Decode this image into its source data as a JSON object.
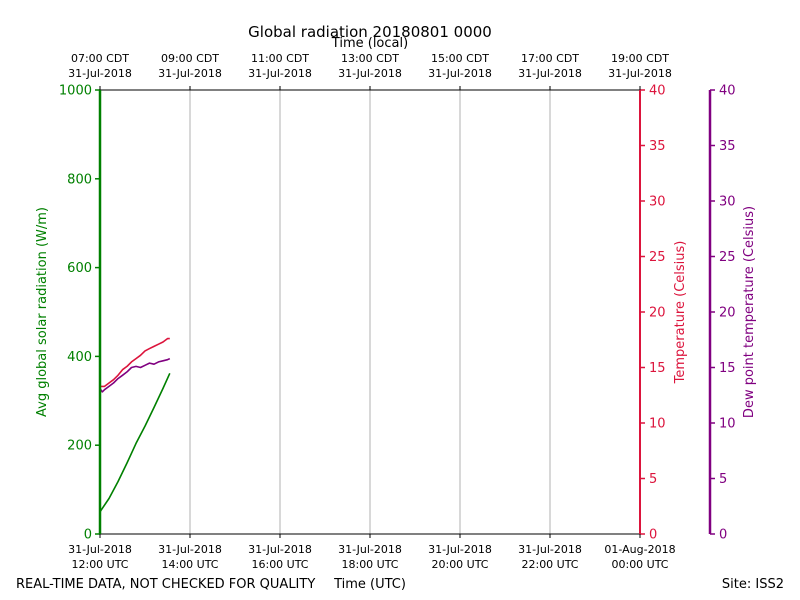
{
  "chart_data": {
    "type": "line",
    "title": "Global radiation 20180801 0000",
    "top_axis_label": "Time (local)",
    "xlabel": "Time (UTC)",
    "footer_left": "REAL-TIME DATA, NOT CHECKED FOR QUALITY",
    "footer_right": "Site: ISS2",
    "x_range_hours_utc": [
      12,
      24
    ],
    "x_ticks_bottom": [
      {
        "hour": 12,
        "line1": "31-Jul-2018",
        "line2": "12:00 UTC"
      },
      {
        "hour": 14,
        "line1": "31-Jul-2018",
        "line2": "14:00 UTC"
      },
      {
        "hour": 16,
        "line1": "31-Jul-2018",
        "line2": "16:00 UTC"
      },
      {
        "hour": 18,
        "line1": "31-Jul-2018",
        "line2": "18:00 UTC"
      },
      {
        "hour": 20,
        "line1": "31-Jul-2018",
        "line2": "20:00 UTC"
      },
      {
        "hour": 22,
        "line1": "31-Jul-2018",
        "line2": "22:00 UTC"
      },
      {
        "hour": 24,
        "line1": "01-Aug-2018",
        "line2": "00:00 UTC"
      }
    ],
    "x_ticks_top": [
      {
        "hour": 12,
        "line1": "07:00 CDT",
        "line2": "31-Jul-2018"
      },
      {
        "hour": 14,
        "line1": "09:00 CDT",
        "line2": "31-Jul-2018"
      },
      {
        "hour": 16,
        "line1": "11:00 CDT",
        "line2": "31-Jul-2018"
      },
      {
        "hour": 18,
        "line1": "13:00 CDT",
        "line2": "31-Jul-2018"
      },
      {
        "hour": 20,
        "line1": "15:00 CDT",
        "line2": "31-Jul-2018"
      },
      {
        "hour": 22,
        "line1": "17:00 CDT",
        "line2": "31-Jul-2018"
      },
      {
        "hour": 24,
        "line1": "19:00 CDT",
        "line2": "31-Jul-2018"
      }
    ],
    "axes": {
      "radiation": {
        "label": "Avg global solar radiation (W/m)",
        "ylim": [
          0,
          1000
        ],
        "ticks": [
          0,
          200,
          400,
          600,
          800,
          1000
        ],
        "color": "#008000"
      },
      "temperature": {
        "label": "Temperature (Celsius)",
        "ylim": [
          0,
          40
        ],
        "ticks": [
          0,
          5,
          10,
          15,
          20,
          25,
          30,
          35,
          40
        ],
        "color": "#dc143c"
      },
      "dewpoint": {
        "label": "Dew point temperature (Celsius)",
        "ylim": [
          0,
          40
        ],
        "ticks": [
          0,
          5,
          10,
          15,
          20,
          25,
          30,
          35,
          40
        ],
        "color": "#800080"
      }
    },
    "series": [
      {
        "name": "radiation",
        "axis": "radiation",
        "color": "#008000",
        "x": [
          12.0,
          12.2,
          12.4,
          12.6,
          12.8,
          13.0,
          13.2,
          13.4,
          13.55
        ],
        "y": [
          50,
          80,
          118,
          160,
          204,
          243,
          285,
          328,
          362
        ]
      },
      {
        "name": "temperature",
        "axis": "temperature",
        "color": "#dc143c",
        "x": [
          12.0,
          12.1,
          12.2,
          12.3,
          12.4,
          12.5,
          12.6,
          12.7,
          12.8,
          12.9,
          13.0,
          13.1,
          13.2,
          13.3,
          13.4,
          13.5,
          13.55
        ],
        "y": [
          13.3,
          13.3,
          13.6,
          13.9,
          14.3,
          14.8,
          15.1,
          15.5,
          15.8,
          16.1,
          16.5,
          16.7,
          16.9,
          17.1,
          17.3,
          17.6,
          17.6
        ]
      },
      {
        "name": "dewpoint",
        "axis": "dewpoint",
        "color": "#800080",
        "x": [
          12.0,
          12.05,
          12.1,
          12.2,
          12.3,
          12.4,
          12.5,
          12.6,
          12.7,
          12.8,
          12.9,
          13.0,
          13.1,
          13.2,
          13.3,
          13.4,
          13.5,
          13.55
        ],
        "y": [
          13.1,
          12.8,
          13.0,
          13.3,
          13.6,
          14.0,
          14.3,
          14.6,
          15.0,
          15.1,
          15.0,
          15.2,
          15.4,
          15.3,
          15.5,
          15.6,
          15.7,
          15.8
        ]
      }
    ]
  }
}
